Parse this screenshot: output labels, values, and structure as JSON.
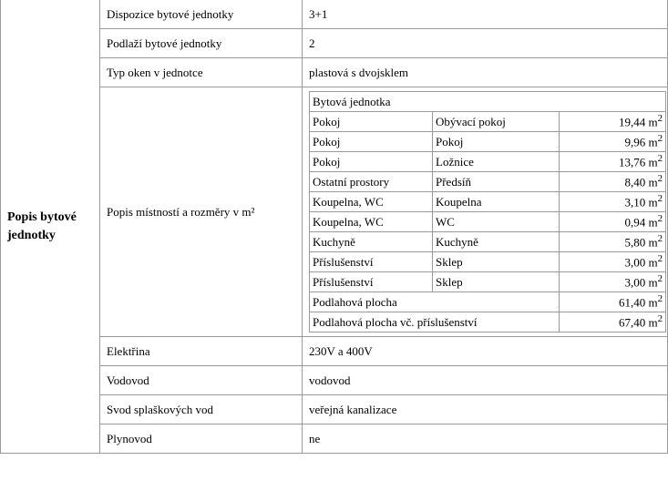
{
  "section_title": "Popis bytové jednotky",
  "rows_top": [
    {
      "label": "Dispozice bytové jednotky",
      "value": "3+1"
    },
    {
      "label": "Podlaží bytové jednotky",
      "value": "2"
    },
    {
      "label": "Typ oken v jednotce",
      "value": "plastová s dvojsklem"
    }
  ],
  "rooms_label": "Popis místností a rozměry v m²",
  "rooms_table": {
    "title": "Bytová jednotka",
    "unit": "m",
    "rows": [
      {
        "type": "Pokoj",
        "name": "Obývací pokoj",
        "area": "19,44"
      },
      {
        "type": "Pokoj",
        "name": "Pokoj",
        "area": "9,96"
      },
      {
        "type": "Pokoj",
        "name": "Ložnice",
        "area": "13,76"
      },
      {
        "type": "Ostatní prostory",
        "name": "Předsíň",
        "area": "8,40"
      },
      {
        "type": "Koupelna, WC",
        "name": "Koupelna",
        "area": "3,10"
      },
      {
        "type": "Koupelna, WC",
        "name": "WC",
        "area": "0,94"
      },
      {
        "type": "Kuchyně",
        "name": "Kuchyně",
        "area": "5,80"
      },
      {
        "type": "Příslušenství",
        "name": "Sklep",
        "area": "3,00"
      },
      {
        "type": "Příslušenství",
        "name": "Sklep",
        "area": "3,00"
      }
    ],
    "totals": [
      {
        "label": "Podlahová plocha",
        "area": "61,40"
      },
      {
        "label": "Podlahová plocha vč. příslušenství",
        "area": "67,40"
      }
    ]
  },
  "rows_bottom": [
    {
      "label": "Elektřina",
      "value": "230V a 400V"
    },
    {
      "label": "Vodovod",
      "value": "vodovod"
    },
    {
      "label": "Svod splaškových vod",
      "value": "veřejná kanalizace"
    },
    {
      "label": "Plynovod",
      "value": "ne"
    }
  ]
}
